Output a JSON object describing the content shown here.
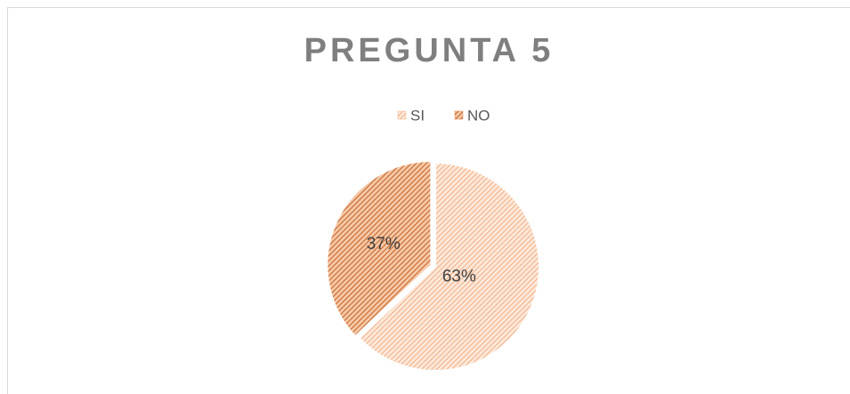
{
  "chart_data": {
    "type": "pie",
    "title": "PREGUNTA 5",
    "categories": [
      "SI",
      "NO"
    ],
    "values": [
      63,
      37
    ],
    "value_labels": [
      "63%",
      "37%"
    ],
    "colors": [
      "#f4b183",
      "#d9844a"
    ],
    "legend": "top"
  }
}
